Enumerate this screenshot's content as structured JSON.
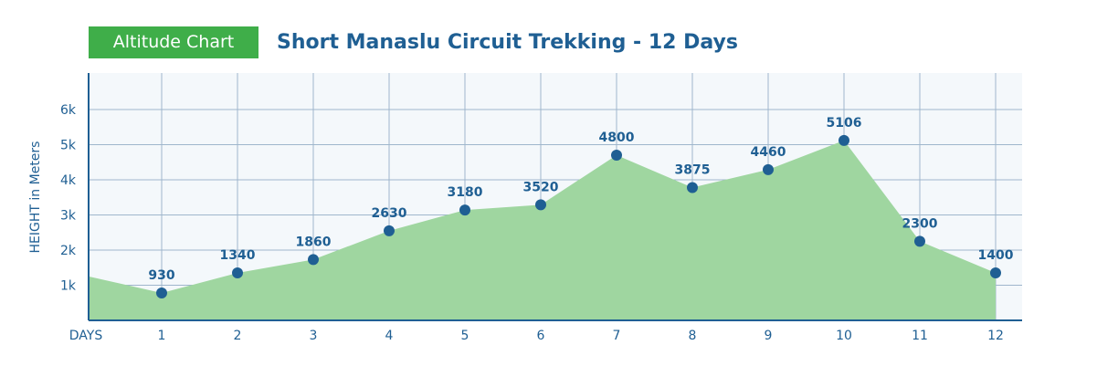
{
  "header": {
    "badge": "Altitude Chart",
    "title": "Short Manaslu Circuit Trekking - 12 Days"
  },
  "colors": {
    "primary": "#1f5f93",
    "badge": "#3fae49",
    "area": "#9fd6a0",
    "grid": "#9fb6cc",
    "plot_bg": "#f4f8fb"
  },
  "chart_data": {
    "type": "area",
    "title": "Short Manaslu Circuit Trekking - 12 Days",
    "xlabel": "DAYS",
    "ylabel": "HEIGHT in Meters",
    "x": [
      1,
      2,
      3,
      4,
      5,
      6,
      7,
      8,
      9,
      10,
      11,
      12
    ],
    "x_tick_labels": [
      "1",
      "2",
      "3",
      "4",
      "5",
      "6",
      "7",
      "8",
      "9",
      "10",
      "11",
      "12"
    ],
    "values": [
      930,
      1340,
      1860,
      2630,
      3180,
      3520,
      4800,
      3875,
      4460,
      5106,
      2300,
      1400
    ],
    "data_labels": [
      "930",
      "1340",
      "1860",
      "2630",
      "3180",
      "3520",
      "4800",
      "3875",
      "4460",
      "5106",
      "2300",
      "1400"
    ],
    "plot_values": [
      780,
      1350,
      1730,
      2550,
      3140,
      3290,
      4700,
      3780,
      4290,
      5120,
      2250,
      1350
    ],
    "y_ticks": [
      1000,
      2000,
      3000,
      4000,
      5000,
      6000
    ],
    "y_tick_labels": [
      "1k",
      "2k",
      "3k",
      "4k",
      "5k",
      "6k"
    ],
    "ylim": [
      0,
      7000
    ],
    "start_value": 1250,
    "grid": true,
    "legend": false
  }
}
